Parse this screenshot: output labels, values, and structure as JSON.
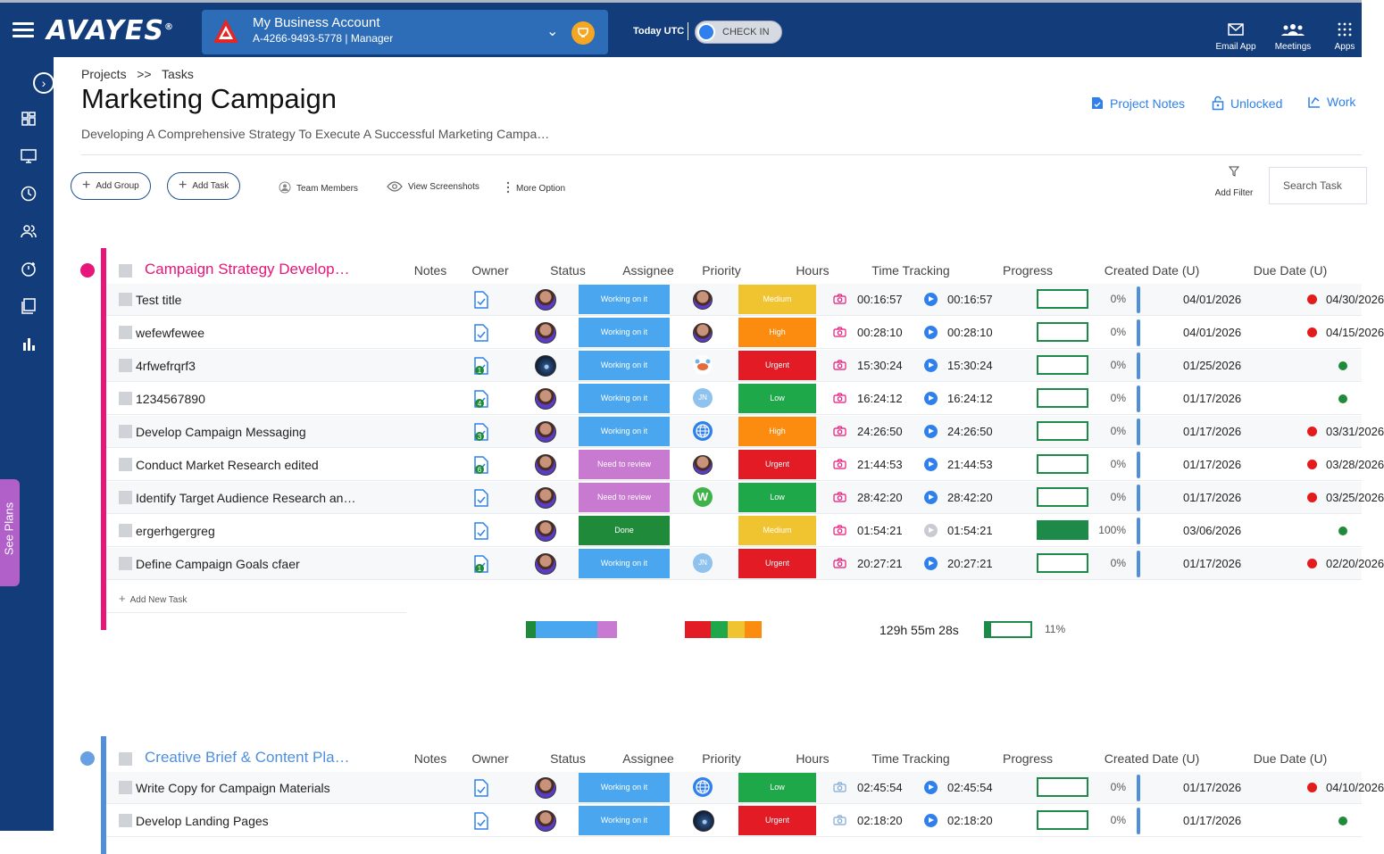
{
  "topbar": {
    "logo": "AVAYES",
    "logo_mark": "®",
    "account_name": "My Business Account",
    "account_id": "A-4266-9493-5778 | Manager",
    "today_label": "Today UTC",
    "checkin_label": "CHECK IN",
    "apps": [
      {
        "label": "Email App",
        "icon": "mail-icon"
      },
      {
        "label": "Meetings",
        "icon": "people-icon"
      },
      {
        "label": "Apps",
        "icon": "grid-dots-icon"
      }
    ]
  },
  "sidebar": {
    "items": [
      "dashboard-icon",
      "monitor-icon",
      "clock-icon",
      "users-icon",
      "timer-icon",
      "tasks-icon",
      "chart-icon"
    ],
    "see_plans": "See Plans"
  },
  "header": {
    "breadcrumb": [
      "Projects",
      ">>",
      "Tasks"
    ],
    "title": "Marketing Campaign",
    "subtitle": "Developing A Comprehensive Strategy To Execute A Successful Marketing Campa…",
    "actions": [
      "Project Notes",
      "Unlocked",
      "Work"
    ]
  },
  "toolbar": {
    "add_group": "Add Group",
    "add_task": "Add Task",
    "team_members": "Team Members",
    "view_screenshots": "View Screenshots",
    "more_option": "More Option",
    "add_filter": "Add Filter",
    "search_placeholder": "Search Task"
  },
  "columns": [
    "Notes",
    "Owner",
    "Status",
    "Assignee",
    "Priority",
    "Hours",
    "Time Tracking",
    "Progress",
    "Created Date (U)",
    "Due Date (U)"
  ],
  "colors": {
    "brand": "#123d7a",
    "working": "#4aa6ee",
    "review": "#c77ad0",
    "done": "#1f8a3a",
    "medium": "#f0c330",
    "high": "#fb8c10",
    "urgent": "#e31b24",
    "low": "#1ea84a",
    "group1": "#e8157a",
    "group2": "#4f8fdc"
  },
  "groups": [
    {
      "name": "Campaign Strategy Develop…",
      "add_task": "Add New Task",
      "tasks": [
        {
          "name": "Test title",
          "note_badge": "",
          "owner": "avatar",
          "status": "Working on it",
          "status_color": "#4aa6ee",
          "assignee": "avatar",
          "assignee_text": "",
          "priority": "Medium",
          "priority_color": "#f0c330",
          "hours": "00:16:57",
          "tracking": "00:16:57",
          "tracking_active": true,
          "progress": 0,
          "progress_label": "0%",
          "created": "04/01/2026",
          "due": "04/30/2026",
          "due_flag": "red"
        },
        {
          "name": "wefewfewee",
          "note_badge": "",
          "owner": "avatar",
          "status": "Working on it",
          "status_color": "#4aa6ee",
          "assignee": "avatar",
          "assignee_text": "",
          "priority": "High",
          "priority_color": "#fb8c10",
          "hours": "00:28:10",
          "tracking": "00:28:10",
          "tracking_active": true,
          "progress": 0,
          "progress_label": "0%",
          "created": "04/01/2026",
          "due": "04/15/2026",
          "due_flag": "red"
        },
        {
          "name": "4rfwefrqrf3",
          "note_badge": "1",
          "owner": "sky",
          "status": "Working on it",
          "status_color": "#4aa6ee",
          "assignee": "crab",
          "assignee_text": "",
          "priority": "Urgent",
          "priority_color": "#e31b24",
          "hours": "15:30:24",
          "tracking": "15:30:24",
          "tracking_active": true,
          "progress": 0,
          "progress_label": "0%",
          "created": "01/25/2026",
          "due": "",
          "due_flag": "green"
        },
        {
          "name": "1234567890",
          "note_badge": "4",
          "owner": "avatar",
          "status": "Working on it",
          "status_color": "#4aa6ee",
          "assignee": "initials",
          "assignee_text": "JN",
          "priority": "Low",
          "priority_color": "#1ea84a",
          "hours": "16:24:12",
          "tracking": "16:24:12",
          "tracking_active": true,
          "progress": 0,
          "progress_label": "0%",
          "created": "01/17/2026",
          "due": "",
          "due_flag": "green"
        },
        {
          "name": "Develop Campaign Messaging",
          "note_badge": "3",
          "owner": "avatar",
          "status": "Working on it",
          "status_color": "#4aa6ee",
          "assignee": "globe",
          "assignee_text": "",
          "priority": "High",
          "priority_color": "#fb8c10",
          "hours": "24:26:50",
          "tracking": "24:26:50",
          "tracking_active": true,
          "progress": 0,
          "progress_label": "0%",
          "created": "01/17/2026",
          "due": "03/31/2026",
          "due_flag": "red"
        },
        {
          "name": "Conduct Market Research edited",
          "note_badge": "6",
          "owner": "avatar",
          "status": "Need to review",
          "status_color": "#c77ad0",
          "assignee": "avatar",
          "assignee_text": "",
          "priority": "Urgent",
          "priority_color": "#e31b24",
          "hours": "21:44:53",
          "tracking": "21:44:53",
          "tracking_active": true,
          "progress": 0,
          "progress_label": "0%",
          "created": "01/17/2026",
          "due": "03/28/2026",
          "due_flag": "red"
        },
        {
          "name": "Identify Target Audience Research an…",
          "note_badge": "",
          "owner": "avatar",
          "status": "Need to review",
          "status_color": "#c77ad0",
          "assignee": "wp",
          "assignee_text": "W",
          "priority": "Low",
          "priority_color": "#1ea84a",
          "hours": "28:42:20",
          "tracking": "28:42:20",
          "tracking_active": true,
          "progress": 0,
          "progress_label": "0%",
          "created": "01/17/2026",
          "due": "03/25/2026",
          "due_flag": "red"
        },
        {
          "name": "ergerhgergreg",
          "note_badge": "",
          "owner": "avatar",
          "status": "Done",
          "status_color": "#1f8a3a",
          "assignee": "none",
          "assignee_text": "",
          "priority": "Medium",
          "priority_color": "#f0c330",
          "hours": "01:54:21",
          "tracking": "01:54:21",
          "tracking_active": false,
          "progress": 1,
          "progress_label": "100%",
          "created": "03/06/2026",
          "due": "",
          "due_flag": "green"
        },
        {
          "name": "Define Campaign Goals cfaer",
          "note_badge": "1",
          "owner": "avatar",
          "status": "Working on it",
          "status_color": "#4aa6ee",
          "assignee": "initials",
          "assignee_text": "JN",
          "priority": "Urgent",
          "priority_color": "#e31b24",
          "hours": "20:27:21",
          "tracking": "20:27:21",
          "tracking_active": true,
          "progress": 0,
          "progress_label": "0%",
          "created": "01/17/2026",
          "due": "02/20/2026",
          "due_flag": "red"
        }
      ],
      "summary": {
        "status_mix": [
          {
            "color": "#1f8a3a",
            "share": 0.11
          },
          {
            "color": "#4aa6ee",
            "share": 0.67
          },
          {
            "color": "#c77ad0",
            "share": 0.22
          }
        ],
        "priority_mix": [
          {
            "color": "#e31b24",
            "share": 0.33
          },
          {
            "color": "#1ea84a",
            "share": 0.22
          },
          {
            "color": "#f0c330",
            "share": 0.22
          },
          {
            "color": "#fb8c10",
            "share": 0.22
          }
        ],
        "total_time": "129h 55m 28s",
        "progress": 0.11,
        "progress_label": "11%"
      }
    },
    {
      "name": "Creative Brief & Content Pla…",
      "tasks": [
        {
          "name": "Write Copy for Campaign Materials",
          "note_badge": "",
          "owner": "avatar",
          "status": "Working on it",
          "status_color": "#4aa6ee",
          "assignee": "globe",
          "assignee_text": "",
          "priority": "Low",
          "priority_color": "#1ea84a",
          "hours": "02:45:54",
          "tracking": "02:45:54",
          "tracking_active": true,
          "progress": 0,
          "progress_label": "0%",
          "created": "01/17/2026",
          "due": "04/10/2026",
          "due_flag": "red"
        },
        {
          "name": "Develop Landing Pages",
          "note_badge": "",
          "owner": "avatar",
          "status": "Working on it",
          "status_color": "#4aa6ee",
          "assignee": "sky",
          "assignee_text": "",
          "priority": "Urgent",
          "priority_color": "#e31b24",
          "hours": "02:18:20",
          "tracking": "02:18:20",
          "tracking_active": true,
          "progress": 0,
          "progress_label": "0%",
          "created": "01/17/2026",
          "due": "",
          "due_flag": "green"
        }
      ]
    }
  ]
}
